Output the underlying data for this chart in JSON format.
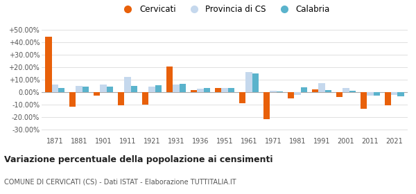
{
  "years": [
    1871,
    1881,
    1901,
    1911,
    1921,
    1931,
    1936,
    1951,
    1961,
    1971,
    1981,
    1991,
    2001,
    2011,
    2021
  ],
  "cervicati": [
    44.0,
    -11.5,
    -3.0,
    -10.5,
    -10.0,
    20.5,
    1.5,
    3.0,
    -9.0,
    -21.5,
    -5.0,
    2.0,
    -4.0,
    -13.5,
    -10.5
  ],
  "provincia_cs": [
    6.0,
    5.0,
    6.0,
    12.0,
    4.5,
    6.0,
    2.5,
    3.0,
    16.0,
    1.0,
    -2.5,
    7.0,
    3.0,
    -3.0,
    -2.5
  ],
  "calabria": [
    3.0,
    4.5,
    4.5,
    5.0,
    5.5,
    6.5,
    3.0,
    3.5,
    15.0,
    0.5,
    4.0,
    1.5,
    1.0,
    -3.0,
    -3.5
  ],
  "cervicati_color": "#e8600a",
  "provincia_cs_color": "#c5d8ed",
  "calabria_color": "#5ab3cc",
  "title": "Variazione percentuale della popolazione ai censimenti",
  "subtitle": "COMUNE DI CERVICATI (CS) - Dati ISTAT - Elaborazione TUTTITALIA.IT",
  "legend_labels": [
    "Cervicati",
    "Provincia di CS",
    "Calabria"
  ],
  "ylim": [
    -35,
    55
  ],
  "yticks": [
    -30,
    -20,
    -10,
    0,
    10,
    20,
    30,
    40,
    50
  ],
  "ytick_labels": [
    "-30.00%",
    "-20.00%",
    "-10.00%",
    "0.00%",
    "+10.00%",
    "+20.00%",
    "+30.00%",
    "+40.00%",
    "+50.00%"
  ],
  "background_color": "#ffffff",
  "grid_color": "#e0e0e0"
}
